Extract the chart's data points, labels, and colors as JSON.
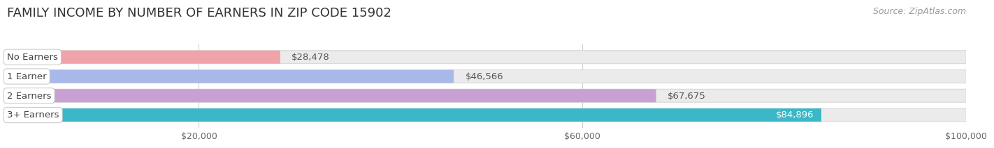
{
  "title": "FAMILY INCOME BY NUMBER OF EARNERS IN ZIP CODE 15902",
  "source": "Source: ZipAtlas.com",
  "categories": [
    "No Earners",
    "1 Earner",
    "2 Earners",
    "3+ Earners"
  ],
  "values": [
    28478,
    46566,
    67675,
    84896
  ],
  "bar_colors": [
    "#f0a4aa",
    "#a8b8e8",
    "#c8a0d4",
    "#3ab8c8"
  ],
  "value_labels": [
    "$28,478",
    "$46,566",
    "$67,675",
    "$84,896"
  ],
  "label_white_text": [
    false,
    false,
    false,
    true
  ],
  "xlim": [
    0,
    100000
  ],
  "xticks": [
    20000,
    60000,
    100000
  ],
  "xtick_labels": [
    "$20,000",
    "$60,000",
    "$100,000"
  ],
  "background_color": "#ffffff",
  "bar_bg_color": "#ebebeb",
  "bar_bg_edge_color": "#d8d8d8",
  "title_fontsize": 13,
  "source_fontsize": 9,
  "label_fontsize": 9.5,
  "value_fontsize": 9.5
}
